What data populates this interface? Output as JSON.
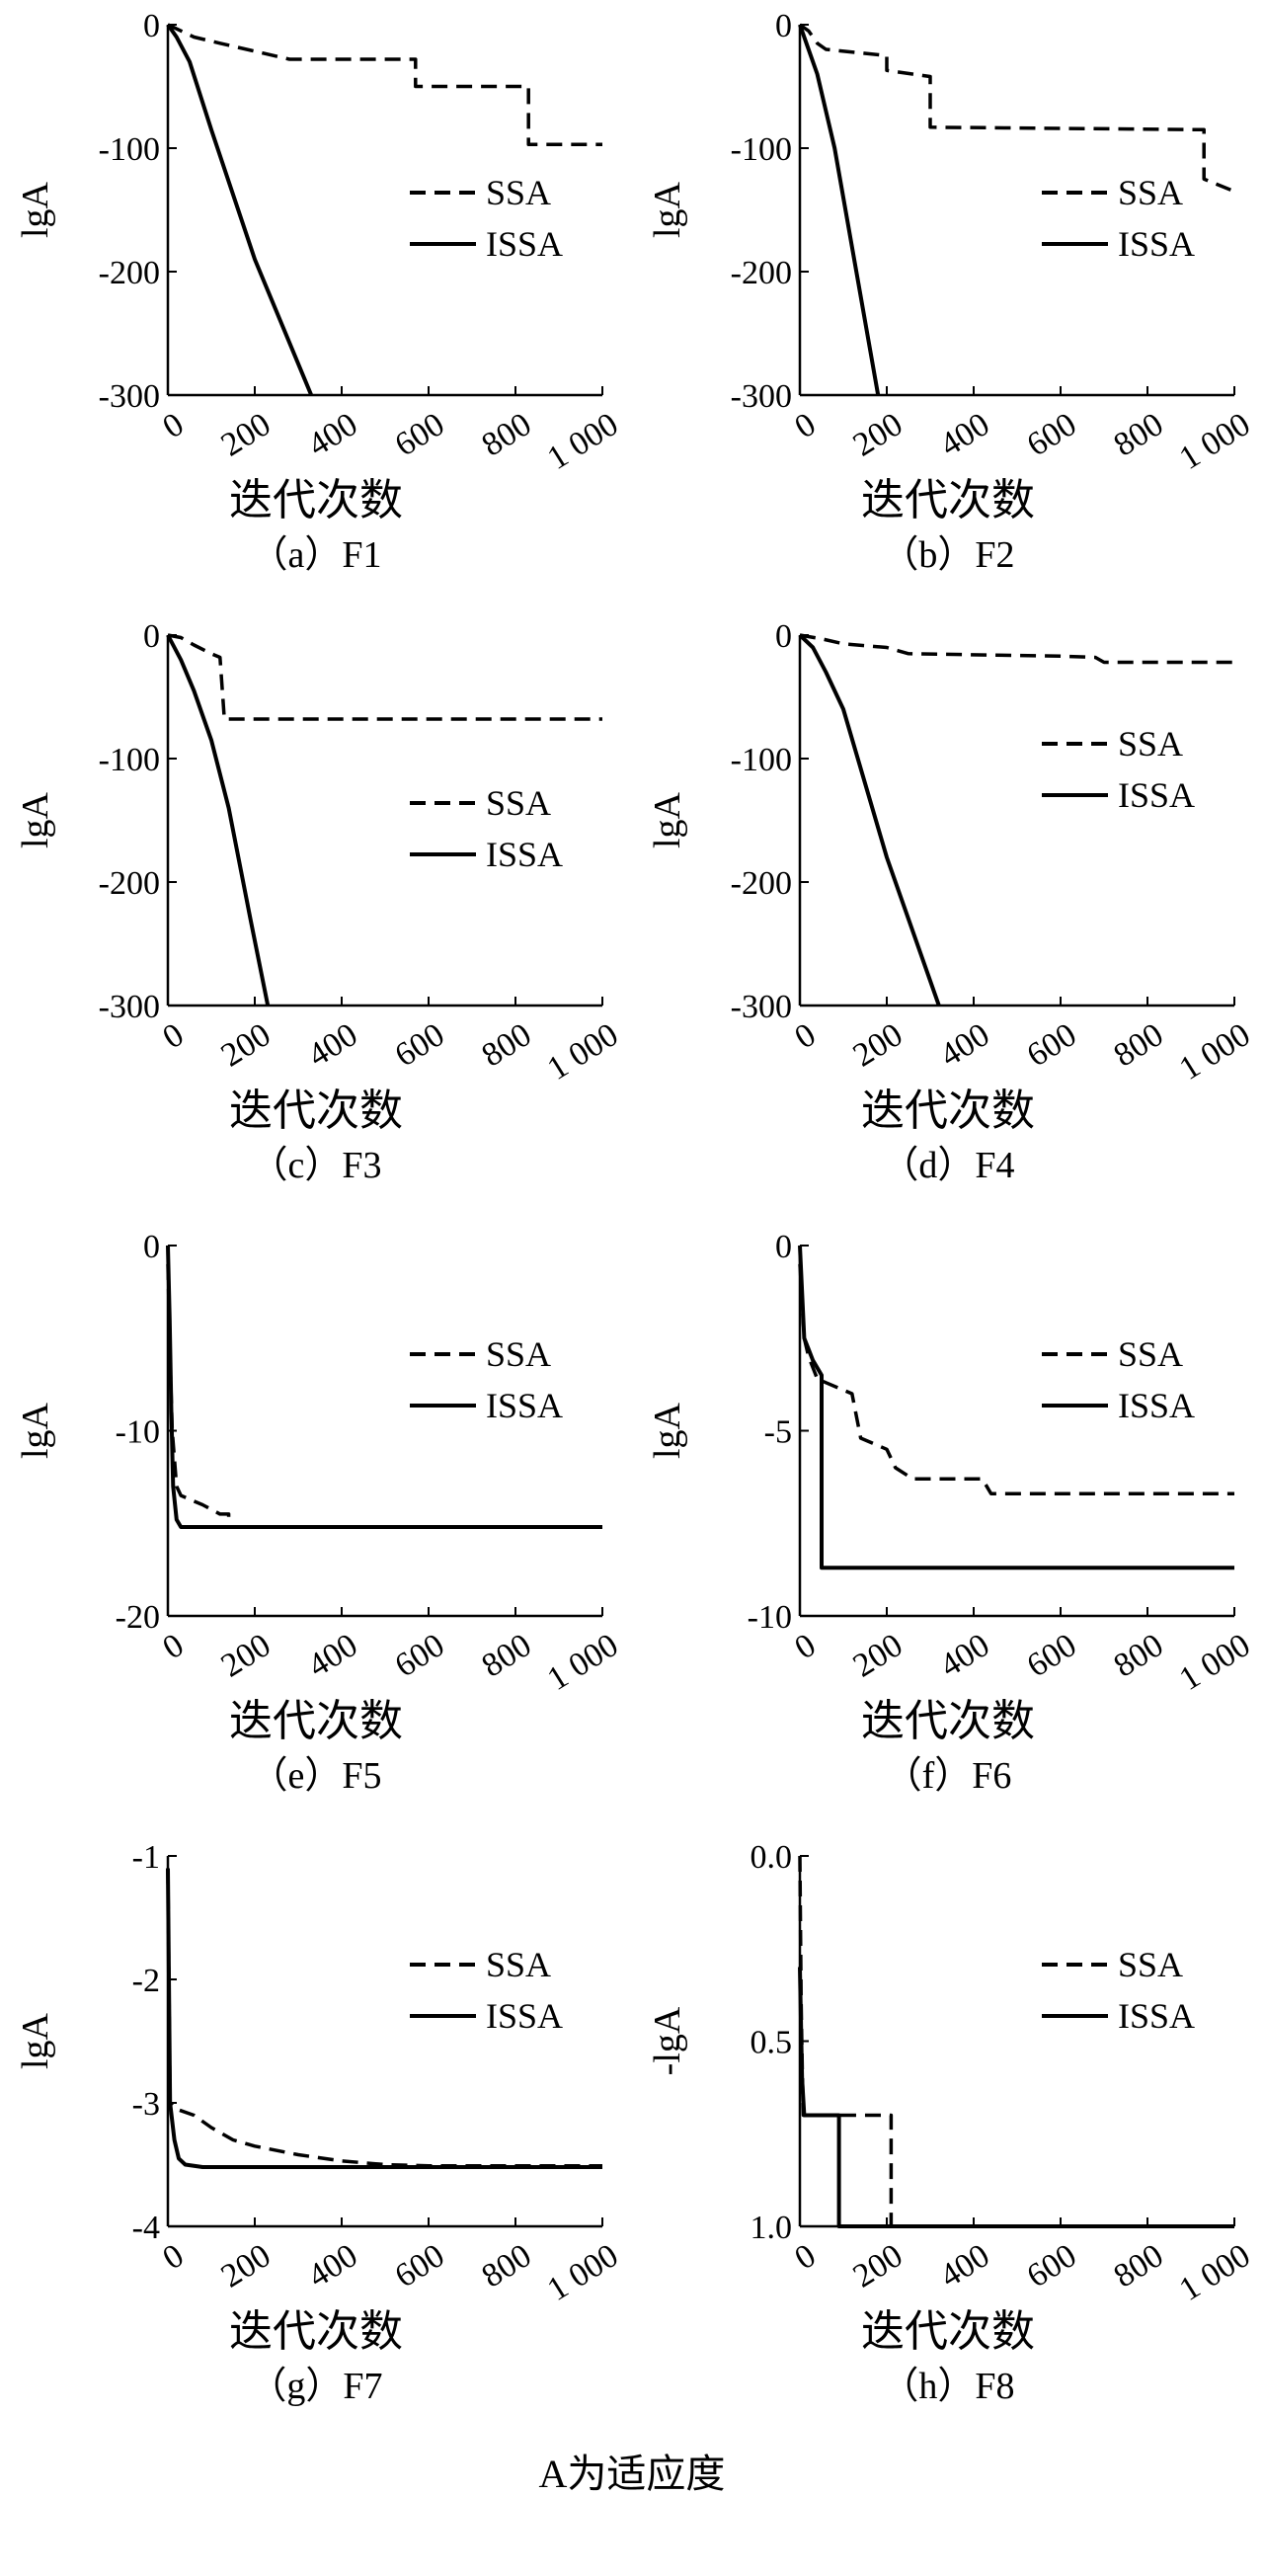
{
  "chart_data": [
    {
      "type": "line",
      "caption": "（a）F1",
      "xlabel": "迭代次数",
      "ylabel": "lgA",
      "xlim": [
        0,
        1000
      ],
      "ylim": [
        -300,
        0
      ],
      "xticks": [
        "0",
        "200",
        "400",
        "600",
        "800",
        "1 000"
      ],
      "yticks": [
        "0",
        "-100",
        "-200",
        "-300"
      ],
      "legend_position": "right-middle",
      "grid": false,
      "series": [
        {
          "name": "SSA",
          "style": "dashed",
          "x": [
            0,
            60,
            120,
            280,
            570,
            570,
            830,
            830,
            1000
          ],
          "y": [
            0,
            -10,
            -15,
            -28,
            -28,
            -50,
            -50,
            -97,
            -97
          ]
        },
        {
          "name": "ISSA",
          "style": "solid",
          "x": [
            0,
            20,
            50,
            100,
            200,
            330
          ],
          "y": [
            0,
            -10,
            -30,
            -85,
            -190,
            -300
          ]
        }
      ]
    },
    {
      "type": "line",
      "caption": "（b）F2",
      "xlabel": "迭代次数",
      "ylabel": "lgA",
      "xlim": [
        0,
        1000
      ],
      "ylim": [
        -300,
        0
      ],
      "xticks": [
        "0",
        "200",
        "400",
        "600",
        "800",
        "1 000"
      ],
      "yticks": [
        "0",
        "-100",
        "-200",
        "-300"
      ],
      "legend_position": "right-middle",
      "grid": false,
      "series": [
        {
          "name": "SSA",
          "style": "dashed",
          "x": [
            0,
            20,
            40,
            60,
            200,
            200,
            300,
            300,
            930,
            930,
            1000
          ],
          "y": [
            0,
            -5,
            -15,
            -20,
            -25,
            -37,
            -42,
            -83,
            -85,
            -125,
            -135
          ]
        },
        {
          "name": "ISSA",
          "style": "solid",
          "x": [
            0,
            15,
            40,
            80,
            130,
            180
          ],
          "y": [
            0,
            -15,
            -40,
            -100,
            -200,
            -300
          ]
        }
      ]
    },
    {
      "type": "line",
      "caption": "（c）F3",
      "xlabel": "迭代次数",
      "ylabel": "lgA",
      "xlim": [
        0,
        1000
      ],
      "ylim": [
        -300,
        0
      ],
      "xticks": [
        "0",
        "200",
        "400",
        "600",
        "800",
        "1 000"
      ],
      "yticks": [
        "0",
        "-100",
        "-200",
        "-300"
      ],
      "legend_position": "right-middle",
      "grid": false,
      "series": [
        {
          "name": "SSA",
          "style": "dashed",
          "x": [
            0,
            30,
            60,
            100,
            120,
            130,
            1000
          ],
          "y": [
            0,
            -2,
            -8,
            -15,
            -18,
            -68,
            -68
          ]
        },
        {
          "name": "ISSA",
          "style": "solid",
          "x": [
            0,
            30,
            60,
            100,
            140,
            190,
            230
          ],
          "y": [
            0,
            -20,
            -45,
            -85,
            -140,
            -230,
            -300
          ]
        }
      ]
    },
    {
      "type": "line",
      "caption": "（d）F4",
      "xlabel": "迭代次数",
      "ylabel": "lgA",
      "xlim": [
        0,
        1000
      ],
      "ylim": [
        -300,
        0
      ],
      "xticks": [
        "0",
        "200",
        "400",
        "600",
        "800",
        "1 000"
      ],
      "yticks": [
        "0",
        "-100",
        "-200",
        "-300"
      ],
      "legend_position": "right-upper",
      "grid": false,
      "series": [
        {
          "name": "SSA",
          "style": "dashed",
          "x": [
            0,
            50,
            100,
            200,
            250,
            600,
            680,
            700,
            1000
          ],
          "y": [
            0,
            -3,
            -7,
            -10,
            -15,
            -17,
            -18,
            -22,
            -22
          ]
        },
        {
          "name": "ISSA",
          "style": "solid",
          "x": [
            0,
            30,
            60,
            100,
            200,
            320
          ],
          "y": [
            0,
            -10,
            -30,
            -60,
            -180,
            -300
          ]
        }
      ]
    },
    {
      "type": "line",
      "caption": "（e）F5",
      "xlabel": "迭代次数",
      "ylabel": "lgA",
      "xlim": [
        0,
        1000
      ],
      "ylim": [
        -20,
        0
      ],
      "xticks": [
        "0",
        "200",
        "400",
        "600",
        "800",
        "1 000"
      ],
      "yticks": [
        "0",
        "-10",
        "-20"
      ],
      "legend_position": "right-upper",
      "grid": false,
      "series": [
        {
          "name": "SSA",
          "style": "dashed",
          "x": [
            0,
            5,
            10,
            20,
            30,
            60,
            80,
            120,
            140,
            140
          ],
          "y": [
            -1,
            -6,
            -10,
            -13,
            -13.5,
            -13.8,
            -14,
            -14.5,
            -14.5,
            -15
          ]
        },
        {
          "name": "ISSA",
          "style": "solid",
          "x": [
            0,
            4,
            8,
            12,
            20,
            30,
            1000
          ],
          "y": [
            0,
            -4,
            -9,
            -13,
            -14.8,
            -15.2,
            -15.2
          ]
        }
      ]
    },
    {
      "type": "line",
      "caption": "（f）F6",
      "xlabel": "迭代次数",
      "ylabel": "lgA",
      "xlim": [
        0,
        1000
      ],
      "ylim": [
        -10,
        0
      ],
      "xticks": [
        "0",
        "200",
        "400",
        "600",
        "800",
        "1 000"
      ],
      "yticks": [
        "0",
        "-5",
        "-10"
      ],
      "legend_position": "right-upper",
      "grid": false,
      "series": [
        {
          "name": "SSA",
          "style": "dashed",
          "x": [
            0,
            10,
            20,
            40,
            60,
            120,
            140,
            200,
            220,
            260,
            420,
            440,
            1000
          ],
          "y": [
            -0.5,
            -2.5,
            -3,
            -3.6,
            -3.7,
            -4,
            -5.2,
            -5.5,
            -6,
            -6.3,
            -6.3,
            -6.7,
            -6.7
          ]
        },
        {
          "name": "ISSA",
          "style": "solid",
          "x": [
            0,
            10,
            20,
            30,
            50,
            50,
            1000
          ],
          "y": [
            0,
            -2.5,
            -2.8,
            -3.1,
            -3.5,
            -8.7,
            -8.7
          ]
        }
      ]
    },
    {
      "type": "line",
      "caption": "（g）F7",
      "xlabel": "迭代次数",
      "ylabel": "lgA",
      "xlim": [
        0,
        1000
      ],
      "ylim": [
        -4,
        -1
      ],
      "xticks": [
        "0",
        "200",
        "400",
        "600",
        "800",
        "1 000"
      ],
      "yticks": [
        "-1",
        "-2",
        "-3",
        "-4"
      ],
      "legend_position": "right-upper",
      "grid": false,
      "series": [
        {
          "name": "SSA",
          "style": "dashed",
          "x": [
            0,
            5,
            20,
            60,
            100,
            150,
            200,
            300,
            400,
            500,
            600,
            1000
          ],
          "y": [
            -1.1,
            -3.0,
            -3.05,
            -3.1,
            -3.2,
            -3.3,
            -3.35,
            -3.42,
            -3.47,
            -3.5,
            -3.51,
            -3.51
          ]
        },
        {
          "name": "ISSA",
          "style": "solid",
          "x": [
            0,
            5,
            15,
            25,
            40,
            80,
            1000
          ],
          "y": [
            -1.1,
            -3.0,
            -3.3,
            -3.45,
            -3.5,
            -3.52,
            -3.52
          ]
        }
      ]
    },
    {
      "type": "line",
      "caption": "（h）F8",
      "xlabel": "迭代次数",
      "ylabel": "-lgA",
      "xlim": [
        0,
        1000
      ],
      "ylim": [
        1.0,
        0.0
      ],
      "xticks": [
        "0",
        "200",
        "400",
        "600",
        "800",
        "1 000"
      ],
      "yticks": [
        "0.0",
        "0.5",
        "1.0"
      ],
      "legend_position": "right-upper",
      "grid": false,
      "series": [
        {
          "name": "SSA",
          "style": "dashed",
          "x": [
            0,
            3,
            6,
            8,
            210,
            210,
            1000
          ],
          "y": [
            0.0,
            0.4,
            0.6,
            0.7,
            0.7,
            1.0,
            1.0
          ]
        },
        {
          "name": "ISSA",
          "style": "solid",
          "x": [
            0,
            5,
            10,
            90,
            90,
            1000
          ],
          "y": [
            0.3,
            0.6,
            0.7,
            0.7,
            1.0,
            1.0
          ]
        }
      ]
    }
  ],
  "footnote": "A为适应度"
}
